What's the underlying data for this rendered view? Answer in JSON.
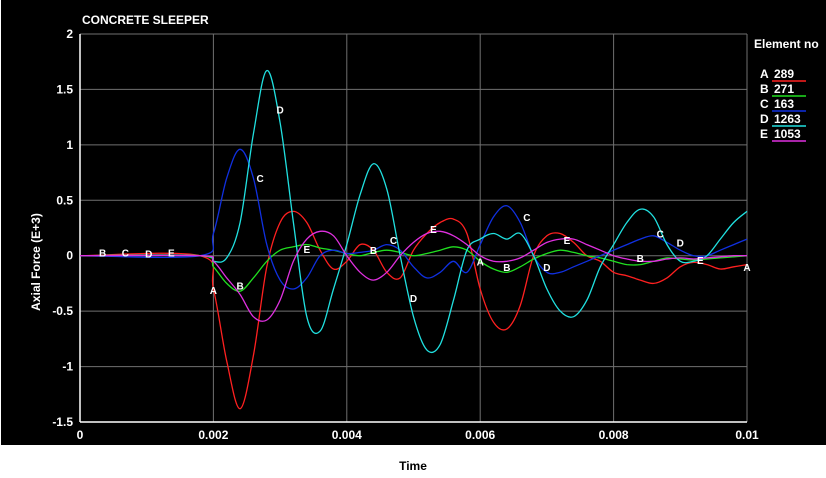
{
  "chart_data": {
    "type": "line",
    "title": "CONCRETE SLEEPER",
    "xlabel": "Time",
    "ylabel": "Axial Force (E+3)",
    "xlim": [
      0,
      0.01
    ],
    "ylim": [
      -1.5,
      2
    ],
    "x_ticks": [
      "0",
      "0.002",
      "0.004",
      "0.006",
      "0.008",
      "0.01"
    ],
    "y_ticks": [
      "2",
      "1.5",
      "1",
      "0.5",
      "0",
      "-0.5",
      "-1",
      "-1.5"
    ],
    "grid": true,
    "legend_title": "Element no",
    "legend_position": "right",
    "background": "#000000",
    "series": [
      {
        "letter": "A",
        "name": "289",
        "color": "#ff2020",
        "points": [
          [
            0,
            0
          ],
          [
            0.0018,
            0
          ],
          [
            0.002,
            -0.3
          ],
          [
            0.0022,
            -0.95
          ],
          [
            0.0024,
            -1.38
          ],
          [
            0.0026,
            -0.9
          ],
          [
            0.0028,
            -0.1
          ],
          [
            0.003,
            0.3
          ],
          [
            0.0032,
            0.4
          ],
          [
            0.0034,
            0.3
          ],
          [
            0.0036,
            0.05
          ],
          [
            0.0038,
            -0.12
          ],
          [
            0.004,
            -0.05
          ],
          [
            0.0042,
            0.1
          ],
          [
            0.0044,
            0.05
          ],
          [
            0.0046,
            -0.15
          ],
          [
            0.0048,
            -0.2
          ],
          [
            0.005,
            0.05
          ],
          [
            0.0052,
            0.2
          ],
          [
            0.0054,
            0.3
          ],
          [
            0.0056,
            0.33
          ],
          [
            0.0058,
            0.2
          ],
          [
            0.006,
            -0.3
          ],
          [
            0.0062,
            -0.6
          ],
          [
            0.0064,
            -0.66
          ],
          [
            0.0066,
            -0.45
          ],
          [
            0.0068,
            0.0
          ],
          [
            0.007,
            0.18
          ],
          [
            0.0072,
            0.2
          ],
          [
            0.0074,
            0.12
          ],
          [
            0.0076,
            0.0
          ],
          [
            0.0078,
            -0.05
          ],
          [
            0.008,
            -0.15
          ],
          [
            0.0082,
            -0.18
          ],
          [
            0.0084,
            -0.22
          ],
          [
            0.0086,
            -0.25
          ],
          [
            0.0088,
            -0.2
          ],
          [
            0.009,
            -0.1
          ],
          [
            0.0092,
            -0.06
          ],
          [
            0.0094,
            -0.08
          ],
          [
            0.0096,
            -0.12
          ],
          [
            0.0098,
            -0.1
          ],
          [
            0.01,
            -0.08
          ]
        ],
        "labels": [
          [
            0.002,
            -0.31
          ],
          [
            0.006,
            -0.05
          ],
          [
            0.01,
            -0.1
          ]
        ]
      },
      {
        "letter": "B",
        "name": "271",
        "color": "#20e020",
        "points": [
          [
            0,
            0
          ],
          [
            0.0018,
            0
          ],
          [
            0.002,
            -0.1
          ],
          [
            0.0022,
            -0.25
          ],
          [
            0.0024,
            -0.32
          ],
          [
            0.0026,
            -0.2
          ],
          [
            0.0028,
            -0.05
          ],
          [
            0.003,
            0.05
          ],
          [
            0.0032,
            0.08
          ],
          [
            0.0034,
            0.1
          ],
          [
            0.0036,
            0.07
          ],
          [
            0.0038,
            0.05
          ],
          [
            0.004,
            0.02
          ],
          [
            0.0042,
            0.0
          ],
          [
            0.0044,
            0.03
          ],
          [
            0.0046,
            0.05
          ],
          [
            0.0048,
            0.03
          ],
          [
            0.005,
            0.0
          ],
          [
            0.0052,
            0.02
          ],
          [
            0.0054,
            0.05
          ],
          [
            0.0056,
            0.08
          ],
          [
            0.0058,
            0.05
          ],
          [
            0.006,
            -0.05
          ],
          [
            0.0062,
            -0.12
          ],
          [
            0.0064,
            -0.15
          ],
          [
            0.0066,
            -0.1
          ],
          [
            0.0068,
            -0.03
          ],
          [
            0.007,
            0.02
          ],
          [
            0.0072,
            0.05
          ],
          [
            0.0074,
            0.03
          ],
          [
            0.0076,
            0.0
          ],
          [
            0.0078,
            -0.02
          ],
          [
            0.008,
            -0.05
          ],
          [
            0.0082,
            -0.08
          ],
          [
            0.0084,
            -0.08
          ],
          [
            0.0086,
            -0.05
          ],
          [
            0.0088,
            -0.02
          ],
          [
            0.009,
            -0.03
          ],
          [
            0.0092,
            -0.04
          ],
          [
            0.0094,
            -0.03
          ],
          [
            0.0096,
            -0.02
          ],
          [
            0.0098,
            -0.01
          ],
          [
            0.01,
            0.0
          ]
        ],
        "labels": [
          [
            0.00034,
            0.03
          ],
          [
            0.0024,
            -0.27
          ],
          [
            0.0044,
            0.05
          ],
          [
            0.0064,
            -0.1
          ],
          [
            0.0084,
            -0.02
          ]
        ]
      },
      {
        "letter": "C",
        "name": "163",
        "color": "#1030e0",
        "points": [
          [
            0,
            0
          ],
          [
            0.0018,
            0
          ],
          [
            0.002,
            0.2
          ],
          [
            0.0022,
            0.7
          ],
          [
            0.0024,
            0.96
          ],
          [
            0.0026,
            0.7
          ],
          [
            0.0028,
            0.1
          ],
          [
            0.003,
            -0.22
          ],
          [
            0.0032,
            -0.3
          ],
          [
            0.0034,
            -0.2
          ],
          [
            0.0036,
            0.0
          ],
          [
            0.0038,
            0.05
          ],
          [
            0.004,
            0.02
          ],
          [
            0.0042,
            0.03
          ],
          [
            0.0044,
            0.05
          ],
          [
            0.0046,
            0.1
          ],
          [
            0.0048,
            0.05
          ],
          [
            0.005,
            -0.1
          ],
          [
            0.0052,
            -0.2
          ],
          [
            0.0054,
            -0.15
          ],
          [
            0.0056,
            -0.05
          ],
          [
            0.0058,
            -0.15
          ],
          [
            0.006,
            0.1
          ],
          [
            0.0062,
            0.35
          ],
          [
            0.0064,
            0.45
          ],
          [
            0.0066,
            0.3
          ],
          [
            0.0068,
            0.0
          ],
          [
            0.007,
            -0.15
          ],
          [
            0.0072,
            -0.15
          ],
          [
            0.0074,
            -0.1
          ],
          [
            0.0076,
            -0.05
          ],
          [
            0.0078,
            0.0
          ],
          [
            0.008,
            0.05
          ],
          [
            0.0082,
            0.1
          ],
          [
            0.0084,
            0.15
          ],
          [
            0.0086,
            0.18
          ],
          [
            0.0088,
            0.12
          ],
          [
            0.009,
            0.05
          ],
          [
            0.0092,
            0.0
          ],
          [
            0.0094,
            0.0
          ],
          [
            0.0096,
            0.05
          ],
          [
            0.0098,
            0.1
          ],
          [
            0.01,
            0.15
          ]
        ],
        "labels": [
          [
            0.00068,
            0.03
          ],
          [
            0.0027,
            0.7
          ],
          [
            0.0047,
            0.14
          ],
          [
            0.0067,
            0.35
          ],
          [
            0.0087,
            0.2
          ]
        ]
      },
      {
        "letter": "D",
        "name": "1263",
        "color": "#20e0e0",
        "points": [
          [
            0,
            0
          ],
          [
            0.0018,
            0
          ],
          [
            0.002,
            -0.05
          ],
          [
            0.0022,
            -0.02
          ],
          [
            0.0024,
            0.3
          ],
          [
            0.0026,
            1.1
          ],
          [
            0.0028,
            1.67
          ],
          [
            0.003,
            1.2
          ],
          [
            0.0032,
            0.3
          ],
          [
            0.0034,
            -0.55
          ],
          [
            0.0036,
            -0.68
          ],
          [
            0.0038,
            -0.3
          ],
          [
            0.004,
            0.1
          ],
          [
            0.0042,
            0.55
          ],
          [
            0.0044,
            0.83
          ],
          [
            0.0046,
            0.6
          ],
          [
            0.0048,
            0.0
          ],
          [
            0.005,
            -0.55
          ],
          [
            0.0052,
            -0.85
          ],
          [
            0.0054,
            -0.8
          ],
          [
            0.0056,
            -0.4
          ],
          [
            0.0058,
            0.05
          ],
          [
            0.006,
            0.15
          ],
          [
            0.0062,
            0.2
          ],
          [
            0.0064,
            0.15
          ],
          [
            0.0066,
            0.2
          ],
          [
            0.0068,
            0.0
          ],
          [
            0.007,
            -0.3
          ],
          [
            0.0072,
            -0.5
          ],
          [
            0.0074,
            -0.55
          ],
          [
            0.0076,
            -0.4
          ],
          [
            0.0078,
            -0.1
          ],
          [
            0.008,
            0.1
          ],
          [
            0.0082,
            0.3
          ],
          [
            0.0084,
            0.42
          ],
          [
            0.0086,
            0.35
          ],
          [
            0.0088,
            0.1
          ],
          [
            0.009,
            -0.05
          ],
          [
            0.0092,
            -0.05
          ],
          [
            0.0094,
            0.0
          ],
          [
            0.0096,
            0.15
          ],
          [
            0.0098,
            0.3
          ],
          [
            0.01,
            0.4
          ]
        ],
        "labels": [
          [
            0.00103,
            0.02
          ],
          [
            0.003,
            1.32
          ],
          [
            0.005,
            -0.38
          ],
          [
            0.007,
            -0.1
          ],
          [
            0.009,
            0.12
          ]
        ]
      },
      {
        "letter": "E",
        "name": "1053",
        "color": "#e030e0",
        "points": [
          [
            0,
            0
          ],
          [
            0.0018,
            0
          ],
          [
            0.002,
            -0.05
          ],
          [
            0.0022,
            -0.2
          ],
          [
            0.0024,
            -0.35
          ],
          [
            0.0026,
            -0.55
          ],
          [
            0.0028,
            -0.58
          ],
          [
            0.003,
            -0.4
          ],
          [
            0.0032,
            -0.05
          ],
          [
            0.0034,
            0.15
          ],
          [
            0.0036,
            0.22
          ],
          [
            0.0038,
            0.18
          ],
          [
            0.004,
            0.0
          ],
          [
            0.0042,
            -0.15
          ],
          [
            0.0044,
            -0.22
          ],
          [
            0.0046,
            -0.15
          ],
          [
            0.0048,
            0.0
          ],
          [
            0.005,
            0.12
          ],
          [
            0.0052,
            0.2
          ],
          [
            0.0054,
            0.22
          ],
          [
            0.0056,
            0.18
          ],
          [
            0.0058,
            0.1
          ],
          [
            0.006,
            0.0
          ],
          [
            0.0062,
            -0.05
          ],
          [
            0.0064,
            -0.05
          ],
          [
            0.0066,
            -0.02
          ],
          [
            0.0068,
            0.05
          ],
          [
            0.007,
            0.12
          ],
          [
            0.0072,
            0.15
          ],
          [
            0.0074,
            0.15
          ],
          [
            0.0076,
            0.1
          ],
          [
            0.0078,
            0.05
          ],
          [
            0.008,
            0.0
          ],
          [
            0.0082,
            -0.03
          ],
          [
            0.0084,
            -0.05
          ],
          [
            0.0086,
            -0.05
          ],
          [
            0.0088,
            -0.03
          ],
          [
            0.009,
            -0.02
          ],
          [
            0.0092,
            -0.03
          ],
          [
            0.0094,
            -0.02
          ],
          [
            0.0096,
            -0.01
          ],
          [
            0.0098,
            0.0
          ],
          [
            0.01,
            0.0
          ]
        ],
        "labels": [
          [
            0.00137,
            0.03
          ],
          [
            0.0034,
            0.06
          ],
          [
            0.0053,
            0.24
          ],
          [
            0.0073,
            0.14
          ],
          [
            0.0093,
            -0.04
          ]
        ]
      }
    ]
  }
}
